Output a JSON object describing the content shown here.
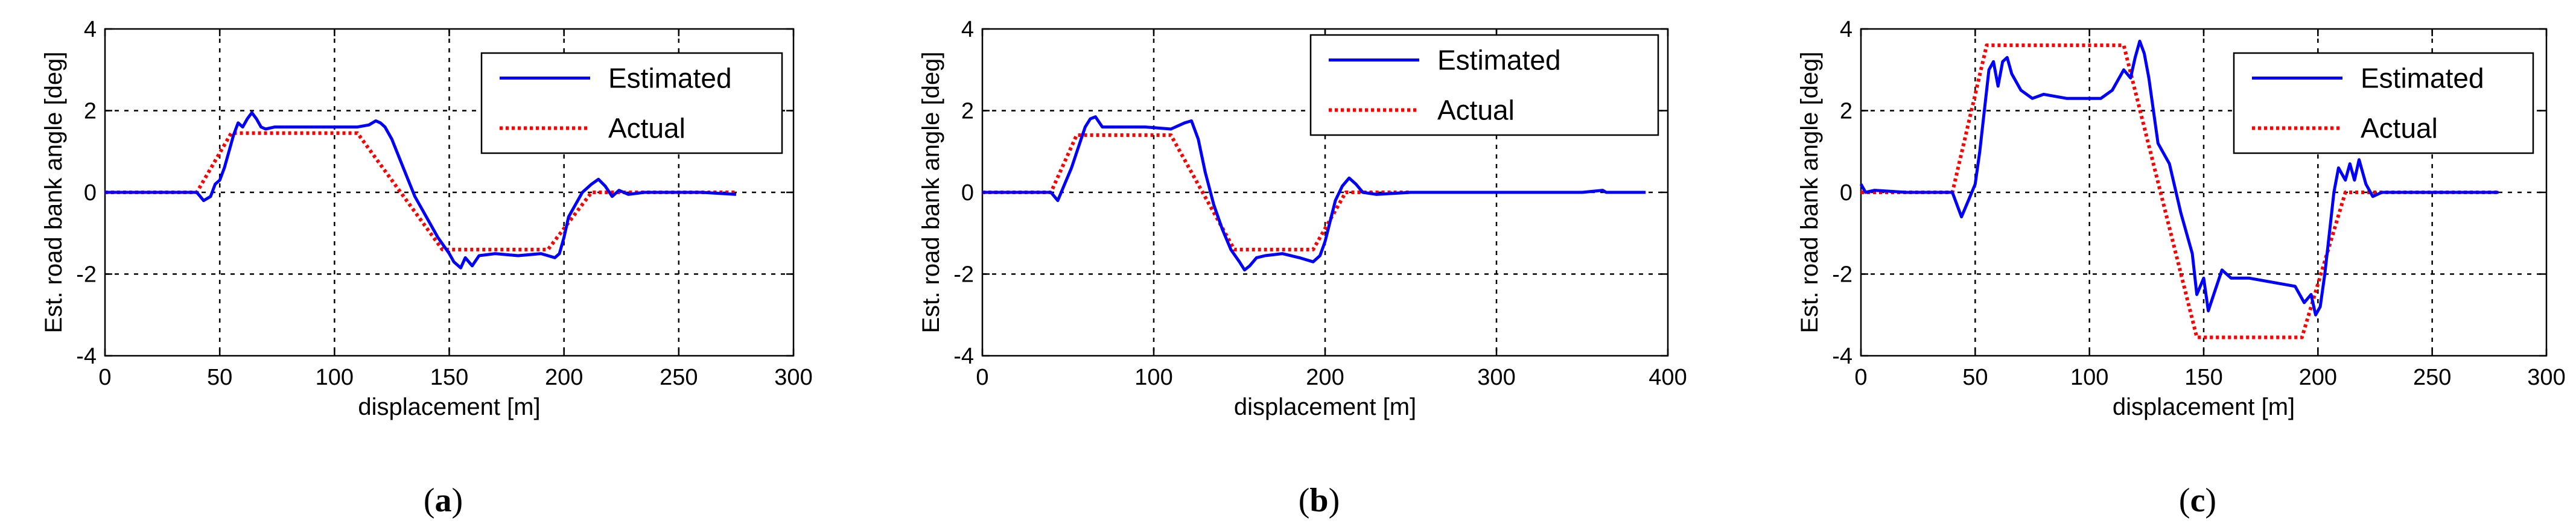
{
  "chart_data": [
    {
      "type": "line",
      "panel_label": "a",
      "xlabel": "displacement [m]",
      "ylabel": "Est. road bank angle [deg]",
      "xlim": [
        0,
        300
      ],
      "ylim": [
        -4,
        4
      ],
      "xticks": [
        0,
        50,
        100,
        150,
        200,
        250,
        300
      ],
      "yticks": [
        -4,
        -2,
        0,
        2,
        4
      ],
      "grid": true,
      "legend_position": "top-right",
      "series": [
        {
          "name": "Estimated",
          "color": "#0000ff",
          "style": "solid",
          "x": [
            0,
            40,
            43,
            46,
            48,
            50,
            52,
            54,
            56,
            58,
            60,
            62,
            64,
            66,
            68,
            70,
            74,
            80,
            90,
            100,
            110,
            115,
            118,
            120,
            122,
            125,
            130,
            135,
            140,
            145,
            150,
            152,
            155,
            157,
            160,
            163,
            170,
            180,
            190,
            196,
            198,
            200,
            202,
            205,
            208,
            212,
            215,
            218,
            221,
            224,
            228,
            235,
            245,
            260,
            275
          ],
          "y": [
            0,
            0,
            -0.2,
            -0.1,
            0.2,
            0.3,
            0.6,
            1.0,
            1.4,
            1.7,
            1.6,
            1.8,
            1.95,
            1.8,
            1.6,
            1.55,
            1.6,
            1.6,
            1.6,
            1.6,
            1.6,
            1.65,
            1.75,
            1.7,
            1.6,
            1.3,
            0.6,
            -0.1,
            -0.6,
            -1.1,
            -1.5,
            -1.7,
            -1.85,
            -1.6,
            -1.8,
            -1.55,
            -1.5,
            -1.55,
            -1.5,
            -1.6,
            -1.5,
            -1.1,
            -0.6,
            -0.3,
            0.0,
            0.2,
            0.32,
            0.15,
            -0.1,
            0.05,
            -0.05,
            0.0,
            0.0,
            0.0,
            -0.05
          ]
        },
        {
          "name": "Actual",
          "color": "#ff0000",
          "style": "dotted",
          "x": [
            0,
            40,
            55,
            110,
            147,
            193,
            212,
            275
          ],
          "y": [
            0,
            0,
            1.45,
            1.45,
            -1.4,
            -1.4,
            0,
            0
          ]
        }
      ]
    },
    {
      "type": "line",
      "panel_label": "b",
      "xlabel": "displacement [m]",
      "ylabel": "Est. road bank angle [deg]",
      "xlim": [
        0,
        400
      ],
      "ylim": [
        -4,
        4
      ],
      "xticks": [
        0,
        100,
        200,
        300,
        400
      ],
      "yticks": [
        -4,
        -2,
        0,
        2,
        4
      ],
      "grid": true,
      "legend_position": "top-right",
      "series": [
        {
          "name": "Estimated",
          "color": "#0000ff",
          "style": "solid",
          "x": [
            0,
            40,
            44,
            48,
            52,
            56,
            60,
            63,
            66,
            70,
            80,
            95,
            110,
            118,
            122,
            126,
            130,
            135,
            140,
            145,
            150,
            153,
            156,
            160,
            165,
            175,
            185,
            193,
            197,
            200,
            203,
            206,
            210,
            214,
            218,
            222,
            230,
            250,
            300,
            350,
            362,
            364,
            370,
            387
          ],
          "y": [
            0,
            0,
            -0.2,
            0.2,
            0.6,
            1.1,
            1.6,
            1.8,
            1.85,
            1.6,
            1.6,
            1.6,
            1.55,
            1.7,
            1.75,
            1.3,
            0.5,
            -0.3,
            -0.9,
            -1.4,
            -1.7,
            -1.9,
            -1.8,
            -1.6,
            -1.55,
            -1.5,
            -1.6,
            -1.7,
            -1.55,
            -1.2,
            -0.7,
            -0.2,
            0.15,
            0.35,
            0.2,
            0.0,
            -0.05,
            0.0,
            0.0,
            0.0,
            0.05,
            0.0,
            0.0,
            0.0
          ]
        },
        {
          "name": "Actual",
          "color": "#ff0000",
          "style": "dotted",
          "x": [
            0,
            40,
            55,
            110,
            147,
            193,
            212,
            250
          ],
          "y": [
            0,
            0,
            1.4,
            1.4,
            -1.4,
            -1.4,
            0,
            0
          ]
        }
      ]
    },
    {
      "type": "line",
      "panel_label": "c",
      "xlabel": "displacement [m]",
      "ylabel": "Est. road bank angle [deg]",
      "xlim": [
        0,
        300
      ],
      "ylim": [
        -4,
        4
      ],
      "xticks": [
        0,
        50,
        100,
        150,
        200,
        250,
        300
      ],
      "yticks": [
        -4,
        -2,
        0,
        2,
        4
      ],
      "grid": true,
      "legend_position": "top-right",
      "series": [
        {
          "name": "Estimated",
          "color": "#0000ff",
          "style": "solid",
          "x": [
            0,
            2,
            6,
            20,
            40,
            44,
            47,
            50,
            52,
            54,
            56,
            58,
            60,
            62,
            64,
            66,
            70,
            75,
            80,
            90,
            100,
            105,
            110,
            115,
            118,
            120,
            122,
            124,
            126,
            128,
            130,
            135,
            140,
            145,
            147,
            150,
            152,
            155,
            158,
            162,
            170,
            180,
            190,
            194,
            197,
            199,
            201,
            203,
            205,
            207,
            209,
            212,
            214,
            216,
            218,
            221,
            224,
            228,
            235,
            250,
            279
          ],
          "y": [
            0.2,
            0.0,
            0.05,
            0.0,
            0.0,
            -0.6,
            -0.2,
            0.2,
            1.0,
            2.0,
            3.0,
            3.2,
            2.6,
            3.2,
            3.3,
            2.9,
            2.5,
            2.3,
            2.4,
            2.3,
            2.3,
            2.3,
            2.5,
            3.0,
            2.8,
            3.3,
            3.7,
            3.4,
            2.8,
            2.0,
            1.2,
            0.7,
            -0.5,
            -1.5,
            -2.5,
            -2.1,
            -2.9,
            -2.4,
            -1.9,
            -2.1,
            -2.1,
            -2.2,
            -2.3,
            -2.7,
            -2.5,
            -3.0,
            -2.8,
            -2.0,
            -1.0,
            0.0,
            0.6,
            0.3,
            0.7,
            0.3,
            0.8,
            0.2,
            -0.1,
            0.0,
            0.0,
            0.0,
            0.0
          ]
        },
        {
          "name": "Actual",
          "color": "#ff0000",
          "style": "dotted",
          "x": [
            0,
            40,
            55,
            115,
            147,
            193,
            212,
            279
          ],
          "y": [
            0,
            0,
            3.6,
            3.6,
            -3.55,
            -3.55,
            0,
            0
          ]
        }
      ]
    }
  ]
}
